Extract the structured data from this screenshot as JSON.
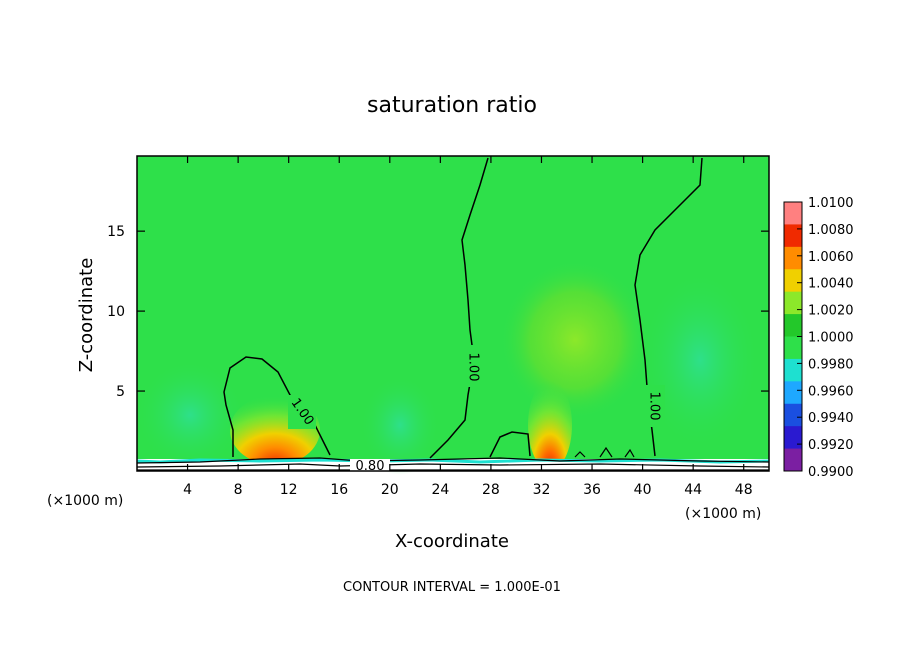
{
  "chart_data": {
    "type": "heatmap",
    "title": "saturation ratio",
    "xlabel": "X-coordinate",
    "ylabel": "Z-coordinate",
    "x_unit_left": "(×1000 m)",
    "x_unit_right": "(×1000 m)",
    "xlim": [
      0,
      50
    ],
    "ylim": [
      0,
      19.7
    ],
    "x_ticks": [
      4,
      8,
      12,
      16,
      20,
      24,
      28,
      32,
      36,
      40,
      44,
      48
    ],
    "x_tick_labels": [
      "4",
      "8",
      "12",
      "16",
      "20",
      "24",
      "28",
      "32",
      "36",
      "40",
      "44",
      "48"
    ],
    "y_ticks": [
      5,
      10,
      15
    ],
    "y_tick_labels": [
      "5",
      "10",
      "15"
    ],
    "colorbar": {
      "levels": [
        0.99,
        0.992,
        0.994,
        0.996,
        0.998,
        1.0,
        1.002,
        1.004,
        1.006,
        1.008,
        1.01
      ],
      "labels": [
        "0.9900",
        "0.9920",
        "0.9940",
        "0.9960",
        "0.9980",
        "1.0000",
        "1.0020",
        "1.0040",
        "1.0060",
        "1.0080",
        "1.0100"
      ],
      "colors": [
        "#7b1fa2",
        "#2a1ad0",
        "#1a4fe0",
        "#1ea8ff",
        "#1ee0d0",
        "#2ee04a",
        "#23c82a",
        "#8ce82a",
        "#f0d000",
        "#ff8c00",
        "#f02a00",
        "#ff8080"
      ]
    },
    "background_value": 1.0,
    "features": [
      {
        "x": 11,
        "z": 1.5,
        "value": 1.006
      },
      {
        "x": 32.5,
        "z": 1.5,
        "value": 1.008
      },
      {
        "x": 33,
        "z": 8,
        "value": 1.002
      }
    ],
    "contours": [
      {
        "label": "1.00",
        "label_pos": [
          5.5,
          3.8
        ]
      },
      {
        "label": "1.00",
        "label_pos": [
          26.8,
          6.5
        ]
      },
      {
        "label": "1.00",
        "label_pos": [
          41.3,
          4.2
        ]
      },
      {
        "label": "0.80",
        "label_pos": [
          18.5,
          0.5
        ]
      }
    ],
    "grid": false,
    "legend": "right"
  },
  "footer": {
    "contour_interval": "CONTOUR INTERVAL = 1.000E-01"
  }
}
